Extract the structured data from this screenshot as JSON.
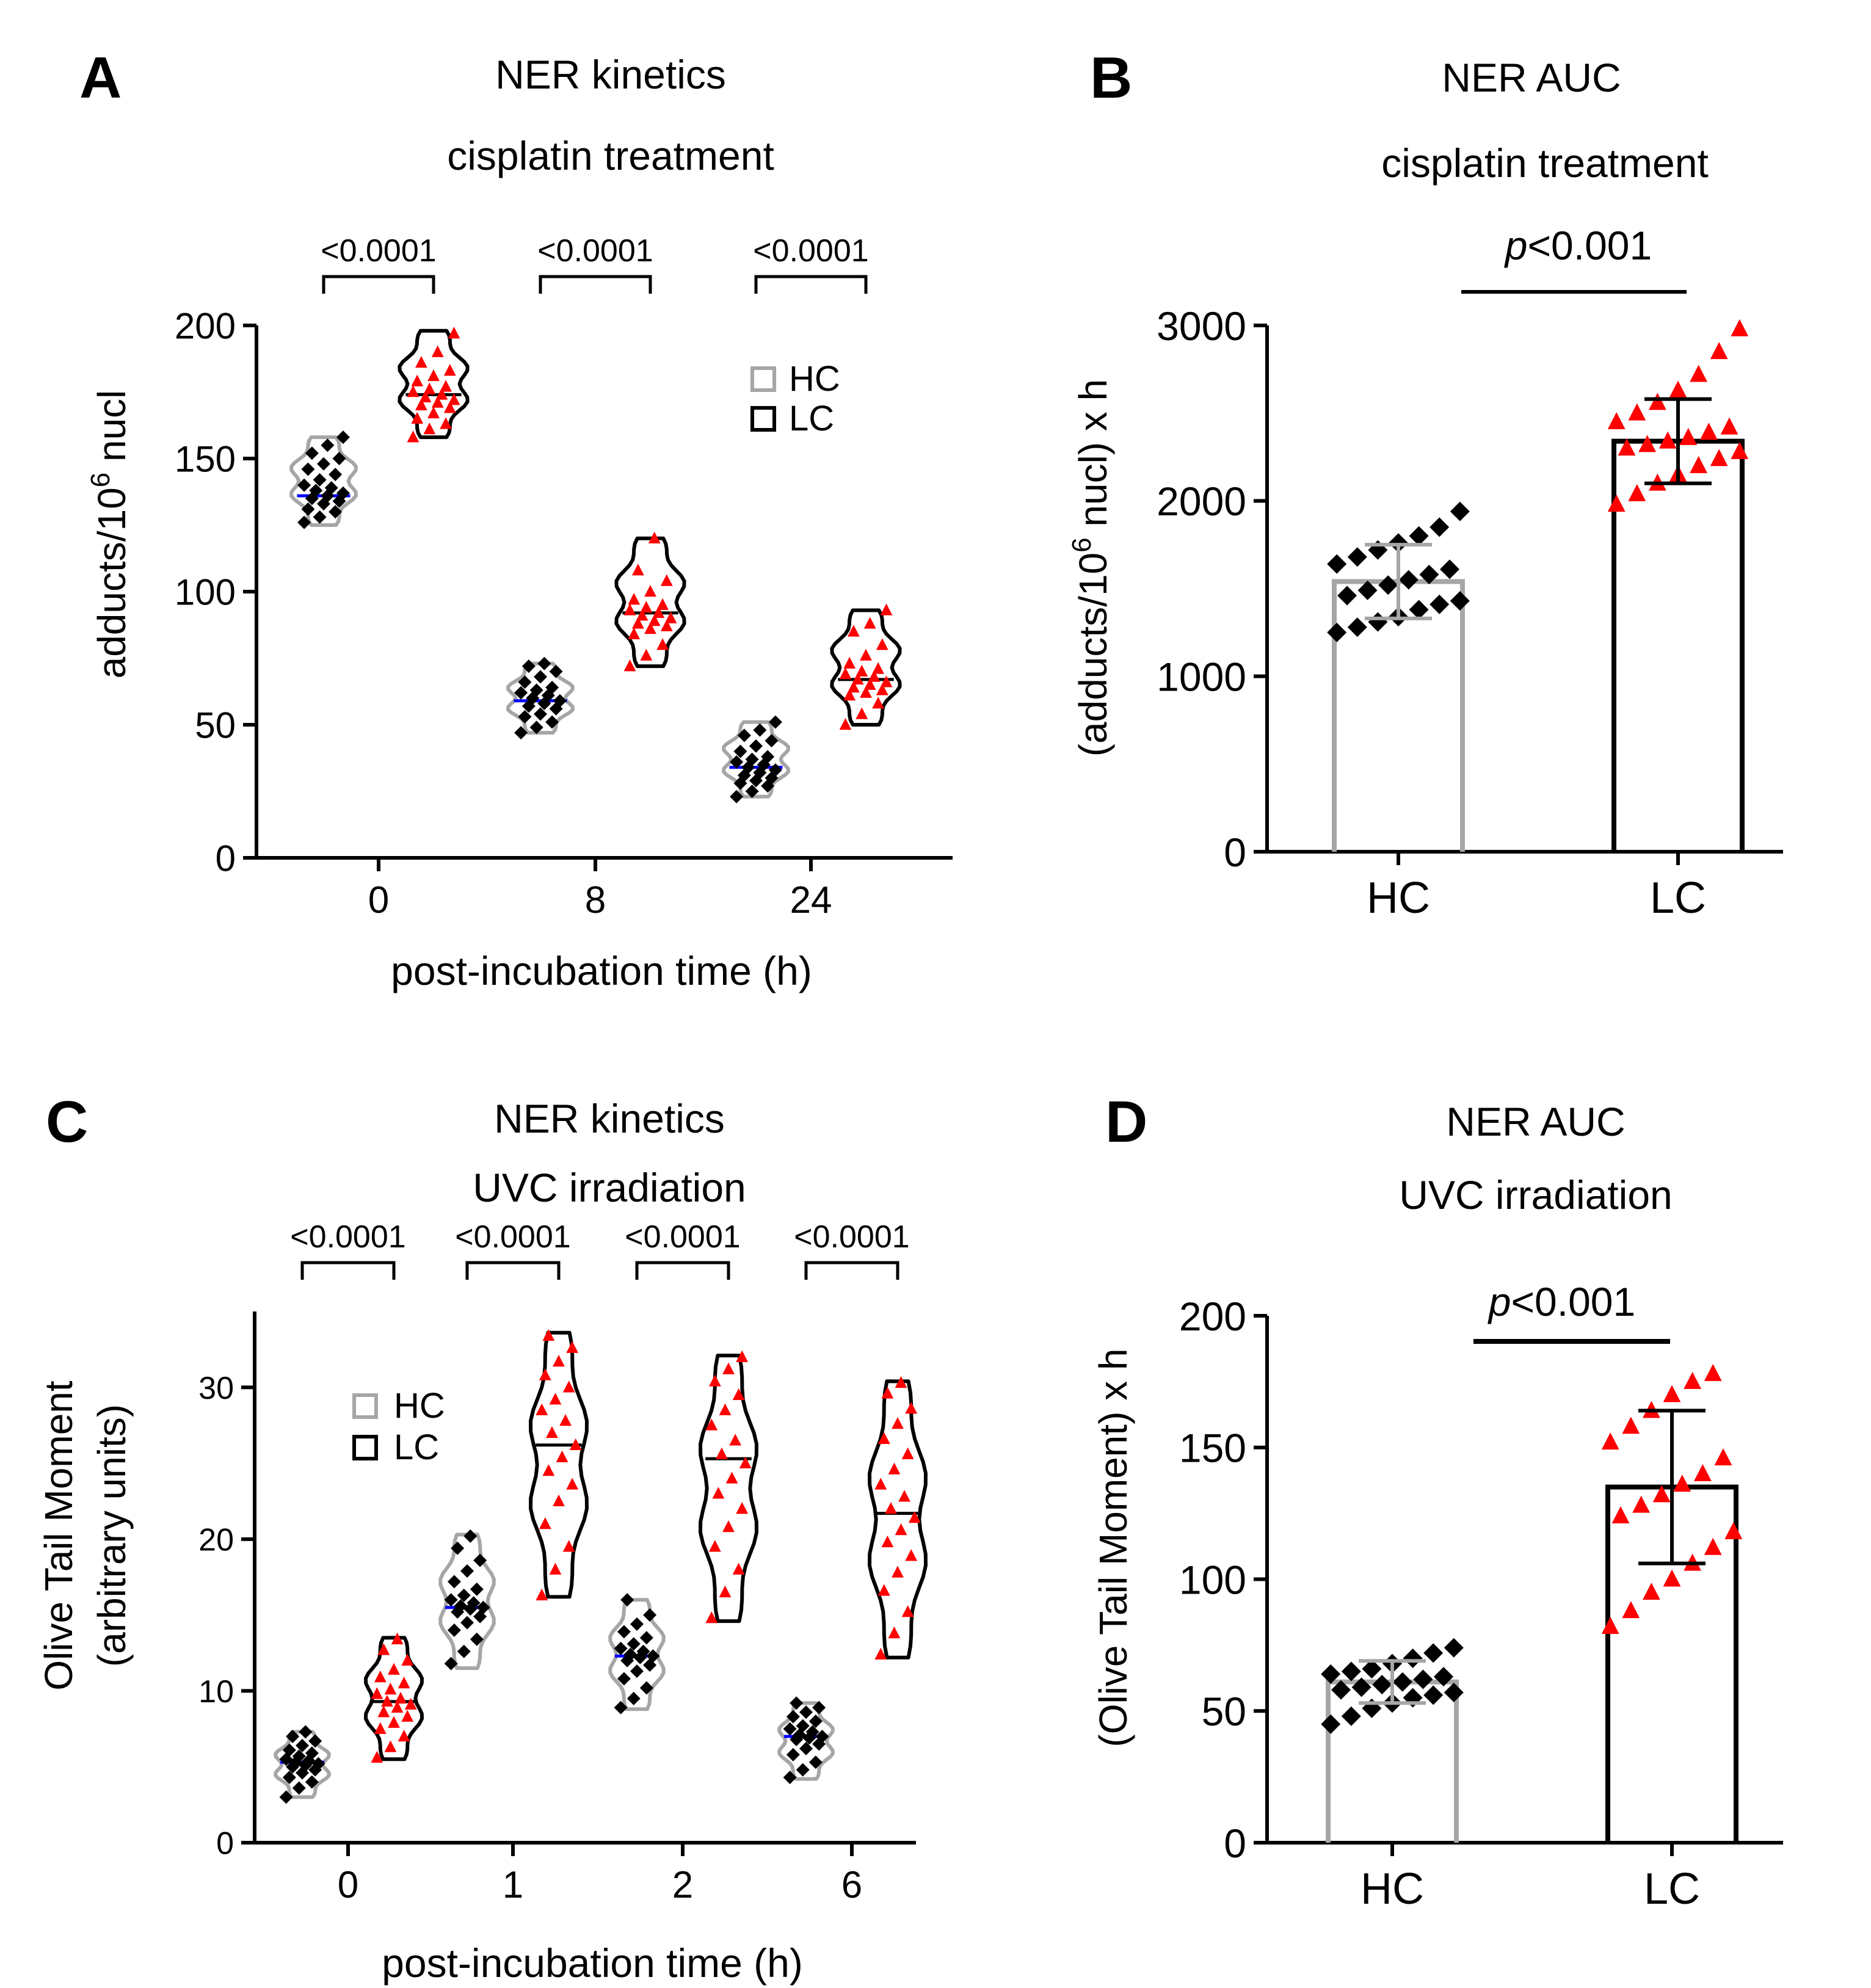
{
  "colors": {
    "hc_outline": "#a6a6a6",
    "lc_outline": "#000000",
    "hc_marker": "#000000",
    "lc_marker": "#ff0000",
    "hc_median": "#0000ff",
    "lc_median": "#000000"
  },
  "chart_data": [
    {
      "panel": "A",
      "type": "violin",
      "title": "NER kinetics",
      "subtitle": "cisplatin treatment",
      "ylabel_main": "adducts/10",
      "ylabel_sup": "6",
      "ylabel_tail": " nucl",
      "xlabel": "post-incubation time (h)",
      "ylim": [
        0,
        200
      ],
      "yticks": [
        0,
        50,
        100,
        150,
        200
      ],
      "categories": [
        "0",
        "8",
        "24"
      ],
      "legend": {
        "position": "top-right",
        "entries": [
          "HC",
          "LC"
        ]
      },
      "significance": [
        "<0.0001",
        "<0.0001",
        "<0.0001"
      ],
      "series": [
        {
          "name": "HC",
          "medians": [
            136,
            59,
            34
          ],
          "ranges": [
            [
              125,
              158
            ],
            [
              47,
              73
            ],
            [
              23,
              51
            ]
          ],
          "points": [
            [
              126,
              128,
              130,
              131,
              133,
              134,
              135,
              136,
              137,
              138,
              139,
              140,
              142,
              144,
              146,
              148,
              150,
              152,
              155,
              158
            ],
            [
              47,
              49,
              51,
              53,
              54,
              56,
              57,
              58,
              59,
              60,
              61,
              62,
              63,
              64,
              66,
              68,
              70,
              72,
              73
            ],
            [
              23,
              25,
              27,
              28,
              29,
              30,
              31,
              32,
              33,
              34,
              35,
              36,
              37,
              38,
              40,
              42,
              44,
              46,
              48,
              51
            ]
          ]
        },
        {
          "name": "LC",
          "medians": [
            174,
            92,
            67
          ],
          "ranges": [
            [
              158,
              198
            ],
            [
              72,
              120
            ],
            [
              50,
              93
            ]
          ],
          "points": [
            [
              158,
              161,
              163,
              165,
              167,
              169,
              170,
              171,
              172,
              173,
              174,
              175,
              176,
              177,
              179,
              181,
              183,
              186,
              190,
              197
            ],
            [
              72,
              76,
              80,
              84,
              86,
              87,
              88,
              89,
              90,
              91,
              92,
              93,
              94,
              95,
              97,
              100,
              104,
              108,
              120
            ],
            [
              50,
              54,
              58,
              61,
              62,
              63,
              64,
              65,
              66,
              67,
              68,
              69,
              70,
              71,
              73,
              76,
              80,
              85,
              88,
              93
            ]
          ]
        }
      ]
    },
    {
      "panel": "B",
      "type": "bar",
      "title": "NER AUC",
      "subtitle": "cisplatin treatment",
      "ylabel_main": "(adducts/10",
      "ylabel_sup": "6",
      "ylabel_tail": " nucl) x h",
      "ylim": [
        0,
        3000
      ],
      "yticks": [
        0,
        1000,
        2000,
        3000
      ],
      "categories": [
        "HC",
        "LC"
      ],
      "values": [
        1540,
        2340
      ],
      "sd": [
        210,
        240
      ],
      "significance_prefix": "p",
      "significance_rest": "<0.001",
      "points": [
        [
          1250,
          1280,
          1310,
          1340,
          1380,
          1410,
          1430,
          1460,
          1490,
          1520,
          1550,
          1580,
          1610,
          1640,
          1680,
          1720,
          1760,
          1800,
          1850,
          1940
        ],
        [
          1980,
          2040,
          2100,
          2150,
          2200,
          2240,
          2280,
          2300,
          2320,
          2340,
          2360,
          2390,
          2420,
          2450,
          2500,
          2560,
          2630,
          2720,
          2850,
          2980
        ]
      ]
    },
    {
      "panel": "C",
      "type": "violin",
      "title": "NER kinetics",
      "subtitle": "UVC irradiation",
      "ylabel_line1": "Olive Tail Moment",
      "ylabel_line2": "(arbitrary units)",
      "xlabel": "post-incubation time (h)",
      "ylim": [
        0,
        35
      ],
      "yticks": [
        0,
        10,
        20,
        30
      ],
      "categories": [
        "0",
        "1",
        "2",
        "6"
      ],
      "legend": {
        "position": "top-left",
        "entries": [
          "HC",
          "LC"
        ]
      },
      "significance": [
        "<0.0001",
        "<0.0001",
        "<0.0001",
        "<0.0001"
      ],
      "series": [
        {
          "name": "HC",
          "medians": [
            5.3,
            15.5,
            12.3,
            7.0
          ],
          "ranges": [
            [
              3.0,
              7.3
            ],
            [
              11.5,
              20.3
            ],
            [
              8.8,
              16.0
            ],
            [
              4.2,
              9.2
            ]
          ],
          "points": [
            [
              3.0,
              3.6,
              4.0,
              4.3,
              4.6,
              4.8,
              5.0,
              5.1,
              5.2,
              5.3,
              5.4,
              5.5,
              5.7,
              5.9,
              6.1,
              6.4,
              6.7,
              7.0,
              7.3
            ],
            [
              11.8,
              12.6,
              13.4,
              14.0,
              14.5,
              14.9,
              15.2,
              15.4,
              15.5,
              15.6,
              15.8,
              16.0,
              16.3,
              16.7,
              17.2,
              17.9,
              18.6,
              19.4,
              20.2
            ],
            [
              8.9,
              9.5,
              10.2,
              10.8,
              11.3,
              11.7,
              12.0,
              12.2,
              12.3,
              12.4,
              12.6,
              12.8,
              13.1,
              13.5,
              13.9,
              14.4,
              15.0,
              16.0
            ],
            [
              4.3,
              4.8,
              5.3,
              5.8,
              6.2,
              6.5,
              6.8,
              6.9,
              7.0,
              7.1,
              7.3,
              7.5,
              7.7,
              8.0,
              8.3,
              8.6,
              8.9,
              9.2
            ]
          ]
        },
        {
          "name": "LC",
          "medians": [
            9.3,
            26.2,
            25.3,
            21.7
          ],
          "ranges": [
            [
              5.5,
              13.5
            ],
            [
              16.2,
              33.6
            ],
            [
              14.6,
              32.1
            ],
            [
              12.2,
              30.4
            ]
          ],
          "points": [
            [
              5.6,
              6.3,
              7.0,
              7.5,
              7.9,
              8.3,
              8.6,
              8.9,
              9.1,
              9.3,
              9.5,
              9.8,
              10.1,
              10.5,
              10.9,
              11.4,
              12.0,
              12.7,
              13.4
            ],
            [
              16.3,
              18.0,
              19.5,
              21.0,
              22.5,
              23.6,
              24.5,
              25.4,
              26.2,
              27.0,
              27.8,
              28.5,
              29.2,
              30.0,
              30.8,
              31.7,
              32.6,
              33.4
            ],
            [
              14.8,
              16.5,
              18.0,
              19.5,
              20.8,
              22.0,
              23.0,
              24.0,
              25.0,
              25.6,
              26.5,
              27.5,
              28.5,
              29.5,
              30.4,
              31.2,
              32.0
            ],
            [
              12.4,
              13.8,
              15.2,
              16.6,
              17.8,
              18.9,
              19.8,
              20.6,
              21.4,
              22.0,
              22.8,
              23.6,
              24.6,
              25.6,
              26.6,
              27.6,
              28.6,
              29.6,
              30.3
            ]
          ]
        }
      ]
    },
    {
      "panel": "D",
      "type": "bar",
      "title": "NER AUC",
      "subtitle": "UVC irradiation",
      "ylabel": "(Olive Tail Moment) x h",
      "ylim": [
        0,
        200
      ],
      "yticks": [
        0,
        50,
        100,
        150,
        200
      ],
      "categories": [
        "HC",
        "LC"
      ],
      "values": [
        61,
        135
      ],
      "sd": [
        8,
        29
      ],
      "significance_prefix": "p",
      "significance_rest": "<0.001",
      "points": [
        [
          45,
          48,
          51,
          53,
          55,
          56,
          57,
          58,
          59,
          60,
          61,
          62,
          63,
          64,
          65,
          66,
          68,
          70,
          72,
          74
        ],
        [
          82,
          88,
          95,
          100,
          106,
          112,
          118,
          124,
          128,
          132,
          136,
          140,
          146,
          152,
          158,
          164,
          170,
          175,
          178
        ]
      ]
    }
  ]
}
